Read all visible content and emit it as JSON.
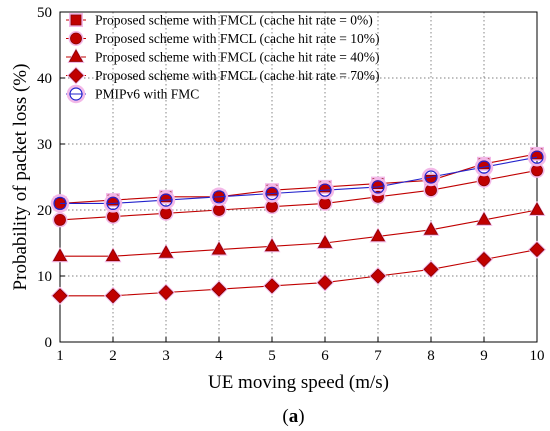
{
  "chart_data": {
    "type": "line",
    "title": "",
    "panel_label": "(a)",
    "xlabel": "UE moving speed (m/s)",
    "ylabel": "Probability of packet loss (%)",
    "xlim": [
      1,
      10
    ],
    "ylim": [
      0,
      50
    ],
    "x_ticks": [
      1,
      2,
      3,
      4,
      5,
      6,
      7,
      8,
      9,
      10
    ],
    "y_ticks": [
      0,
      10,
      20,
      30,
      40,
      50
    ],
    "grid": true,
    "legend_position": "top-left",
    "x": [
      1,
      2,
      3,
      4,
      5,
      6,
      7,
      8,
      9,
      10
    ],
    "series": [
      {
        "name": "Proposed scheme with FMCL (cache hit rate = 0%)",
        "marker": "square",
        "color": "#c00000",
        "values": [
          21,
          21.5,
          22,
          22,
          23,
          23.5,
          24,
          24.5,
          27,
          28.5
        ]
      },
      {
        "name": "Proposed scheme with FMCL (cache hit rate = 10%)",
        "marker": "circle",
        "color": "#c00000",
        "values": [
          18.5,
          19,
          19.5,
          20,
          20.5,
          21,
          22,
          23,
          24.5,
          26
        ]
      },
      {
        "name": "Proposed scheme with FMCL (cache hit rate = 40%)",
        "marker": "triangle",
        "color": "#c00000",
        "values": [
          13,
          13,
          13.5,
          14,
          14.5,
          15,
          16,
          17,
          18.5,
          20
        ]
      },
      {
        "name": "Proposed scheme with FMCL (cache hit rate = 70%)",
        "marker": "diamond",
        "color": "#c00000",
        "values": [
          7,
          7,
          7.5,
          8,
          8.5,
          9,
          10,
          11,
          12.5,
          14
        ]
      },
      {
        "name": "PMIPv6 with FMC",
        "marker": "open-circle",
        "color": "#2222cc",
        "values": [
          21,
          21,
          21.5,
          22,
          22.5,
          23,
          23.5,
          25,
          26.5,
          28
        ]
      }
    ]
  }
}
